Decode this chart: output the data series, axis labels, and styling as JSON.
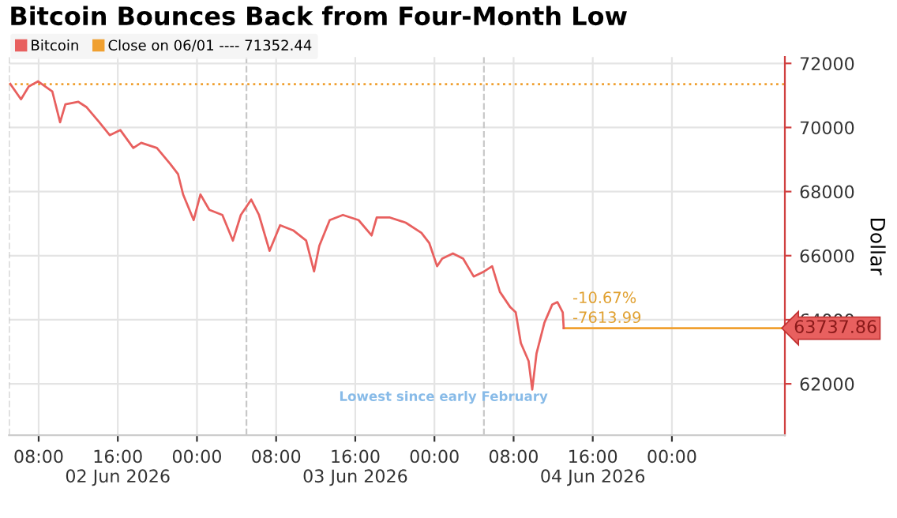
{
  "chart_data": {
    "type": "line",
    "title": "Bitcoin Bounces Back from Four-Month Low",
    "ylabel": "Dollar",
    "x": [
      "2026-06-02T05:08",
      "2026-06-02T06:13",
      "2026-06-02T07:00",
      "2026-06-02T07:57",
      "2026-06-02T09:23",
      "2026-06-02T10:10",
      "2026-06-02T10:42",
      "2026-06-02T12:01",
      "2026-06-02T12:49",
      "2026-06-02T14:08",
      "2026-06-02T15:11",
      "2026-06-02T16:15",
      "2026-06-02T17:34",
      "2026-06-02T18:22",
      "2026-06-02T19:57",
      "2026-06-02T21:17",
      "2026-06-02T22:05",
      "2026-06-02T22:36",
      "2026-06-02T23:40",
      "2026-06-03T00:21",
      "2026-06-03T01:15",
      "2026-06-03T02:34",
      "2026-06-03T03:38",
      "2026-06-03T04:26",
      "2026-06-03T05:29",
      "2026-06-03T06:16",
      "2026-06-03T07:20",
      "2026-06-03T08:24",
      "2026-06-03T09:43",
      "2026-06-03T11:02",
      "2026-06-03T11:50",
      "2026-06-03T12:22",
      "2026-06-03T13:25",
      "2026-06-03T14:45",
      "2026-06-03T16:20",
      "2026-06-03T17:39",
      "2026-06-03T18:10",
      "2026-06-03T19:30",
      "2026-06-03T21:06",
      "2026-06-03T22:41",
      "2026-06-03T23:29",
      "2026-06-04T00:16",
      "2026-06-04T00:47",
      "2026-06-04T01:52",
      "2026-06-04T02:54",
      "2026-06-04T03:58",
      "2026-06-04T05:02",
      "2026-06-04T05:50",
      "2026-06-04T06:37",
      "2026-06-04T07:40",
      "2026-06-04T08:13",
      "2026-06-04T08:44",
      "2026-06-04T09:31",
      "2026-06-04T09:53",
      "2026-06-04T10:19",
      "2026-06-04T11:07",
      "2026-06-04T11:54",
      "2026-06-04T12:26",
      "2026-06-04T12:58",
      "2026-06-04T13:04"
    ],
    "series": [
      {
        "name": "Bitcoin",
        "color": "#e8605f",
        "values": [
          71360,
          70880,
          71280,
          71440,
          71120,
          70160,
          70720,
          70800,
          70640,
          70160,
          69760,
          69920,
          69360,
          69520,
          69360,
          68870,
          68550,
          67910,
          67110,
          67910,
          67430,
          67270,
          66470,
          67270,
          67750,
          67270,
          66150,
          66950,
          66790,
          66470,
          65510,
          66310,
          67110,
          67270,
          67110,
          66630,
          67190,
          67190,
          67030,
          66710,
          66390,
          65670,
          65910,
          66070,
          65910,
          65350,
          65510,
          65670,
          64870,
          64390,
          64230,
          63270,
          62710,
          61820,
          62950,
          63910,
          64470,
          64550,
          64230,
          63740
        ]
      }
    ],
    "xlim": [
      "2026-06-02T05:00",
      "2026-06-05T11:25"
    ],
    "xticks": [
      {
        "value": "2026-06-02T08:00",
        "label": "08:00"
      },
      {
        "value": "2026-06-02T16:00",
        "label": "16:00\n02 Jun 2026"
      },
      {
        "value": "2026-06-03T00:00",
        "label": "00:00"
      },
      {
        "value": "2026-06-03T08:00",
        "label": "08:00"
      },
      {
        "value": "2026-06-03T16:00",
        "label": "16:00\n03 Jun 2026"
      },
      {
        "value": "2026-06-04T00:00",
        "label": "00:00"
      },
      {
        "value": "2026-06-04T08:00",
        "label": "08:00"
      },
      {
        "value": "2026-06-04T16:00",
        "label": "16:00\n04 Jun 2026"
      },
      {
        "value": "2026-06-05T00:00",
        "label": "00:00"
      }
    ],
    "ylim": [
      60400,
      72200
    ],
    "yticks": [
      62000,
      64000,
      66000,
      68000,
      70000,
      72000
    ],
    "ref_lines": [
      {
        "axis": "y",
        "value": 71352.44,
        "label": "Close on 06/01 ---- 71352.44",
        "color": "#f0a030",
        "line_style": "dotted"
      },
      {
        "axis": "y",
        "value": 63737.86,
        "label": "63737.86",
        "color": "#f0a030",
        "line_style": "solid"
      },
      {
        "axis": "x",
        "value": "2026-06-02T05:00",
        "color": "#c8c8c8",
        "line_style": "dashed"
      },
      {
        "axis": "x",
        "value": "2026-06-03T05:00",
        "color": "#c8c8c8",
        "line_style": "dashed"
      },
      {
        "axis": "x",
        "value": "2026-06-04T05:00",
        "color": "#c8c8c8",
        "line_style": "dashed"
      }
    ],
    "annotations": [
      {
        "text": "-10.67%",
        "x": "2026-06-04T13:04",
        "y": 63737.86
      },
      {
        "text": "-7613.99",
        "x": "2026-06-04T13:04",
        "y": 63737.86
      },
      "Lowest since early February"
    ],
    "grid": true,
    "legend": "top left",
    "line_style": "solid",
    "marker": "none"
  }
}
